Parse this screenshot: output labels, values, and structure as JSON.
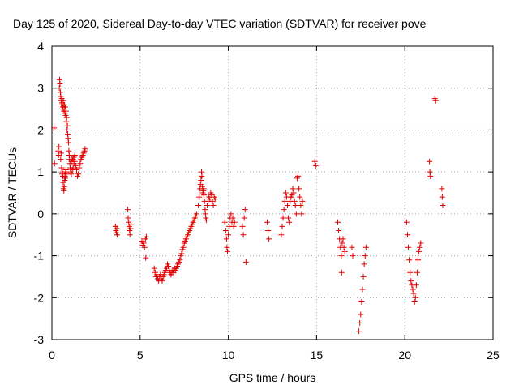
{
  "chart_data": {
    "type": "scatter",
    "title": "Day 125 of 2020, Sidereal Day-to-day VTEC variation (SDTVAR) for receiver pove",
    "xlabel": "GPS time / hours",
    "ylabel": "SDTVAR / TECUs",
    "xlim": [
      0,
      25
    ],
    "ylim": [
      -3,
      4
    ],
    "xticks": [
      0,
      5,
      10,
      15,
      20,
      25
    ],
    "yticks": [
      -3,
      -2,
      -1,
      0,
      1,
      2,
      3,
      4
    ],
    "xtick_labels": [
      "0",
      "5",
      "10",
      "15",
      "20",
      "25"
    ],
    "ytick_labels": [
      "-3",
      "-2",
      "-1",
      "0",
      "1",
      "2",
      "3",
      "4"
    ],
    "grid": true,
    "marker": "+",
    "series": [
      {
        "name": "SDTVAR",
        "color": "#e00000",
        "points": [
          [
            0.12,
            2.05
          ],
          [
            0.15,
            1.2
          ],
          [
            0.35,
            1.5
          ],
          [
            0.38,
            1.4
          ],
          [
            0.4,
            1.6
          ],
          [
            0.42,
            3.0
          ],
          [
            0.44,
            3.2
          ],
          [
            0.46,
            3.1
          ],
          [
            0.48,
            2.9
          ],
          [
            0.5,
            2.8
          ],
          [
            0.52,
            2.7
          ],
          [
            0.54,
            2.6
          ],
          [
            0.56,
            2.75
          ],
          [
            0.58,
            2.65
          ],
          [
            0.6,
            2.5
          ],
          [
            0.62,
            2.55
          ],
          [
            0.64,
            2.7
          ],
          [
            0.66,
            2.6
          ],
          [
            0.68,
            2.45
          ],
          [
            0.7,
            2.5
          ],
          [
            0.72,
            2.6
          ],
          [
            0.74,
            2.4
          ],
          [
            0.76,
            2.55
          ],
          [
            0.78,
            2.35
          ],
          [
            0.8,
            2.45
          ],
          [
            0.82,
            2.2
          ],
          [
            0.84,
            2.3
          ],
          [
            0.86,
            2.0
          ],
          [
            0.88,
            2.1
          ],
          [
            0.9,
            1.9
          ],
          [
            0.92,
            1.8
          ],
          [
            0.94,
            1.7
          ],
          [
            0.96,
            1.5
          ],
          [
            0.98,
            1.4
          ],
          [
            1.0,
            1.3
          ],
          [
            1.02,
            1.2
          ],
          [
            1.04,
            1.1
          ],
          [
            0.5,
            1.3
          ],
          [
            0.52,
            1.45
          ],
          [
            0.55,
            1.1
          ],
          [
            0.58,
            0.95
          ],
          [
            0.6,
            1.0
          ],
          [
            0.62,
            0.9
          ],
          [
            0.64,
            0.75
          ],
          [
            0.66,
            0.6
          ],
          [
            0.68,
            0.55
          ],
          [
            0.7,
            0.65
          ],
          [
            0.72,
            0.8
          ],
          [
            0.74,
            0.9
          ],
          [
            0.76,
            0.85
          ],
          [
            0.78,
            1.0
          ],
          [
            0.8,
            1.05
          ],
          [
            0.82,
            0.95
          ],
          [
            1.06,
            1.0
          ],
          [
            1.1,
            0.95
          ],
          [
            1.15,
            1.05
          ],
          [
            1.2,
            1.1
          ],
          [
            1.25,
            1.2
          ],
          [
            1.3,
            1.25
          ],
          [
            1.35,
            1.15
          ],
          [
            1.4,
            1.05
          ],
          [
            1.45,
            0.9
          ],
          [
            1.5,
            0.95
          ],
          [
            1.55,
            1.1
          ],
          [
            1.6,
            1.2
          ],
          [
            1.65,
            1.3
          ],
          [
            1.7,
            1.35
          ],
          [
            1.75,
            1.4
          ],
          [
            1.8,
            1.45
          ],
          [
            1.85,
            1.5
          ],
          [
            1.88,
            1.55
          ],
          [
            1.2,
            1.3
          ],
          [
            1.25,
            1.35
          ],
          [
            1.3,
            1.4
          ],
          [
            1.1,
            1.25
          ],
          [
            1.15,
            1.3
          ],
          [
            3.6,
            -0.3
          ],
          [
            3.62,
            -0.4
          ],
          [
            3.65,
            -0.45
          ],
          [
            3.68,
            -0.35
          ],
          [
            3.7,
            -0.5
          ],
          [
            4.3,
            0.1
          ],
          [
            4.32,
            -0.1
          ],
          [
            4.35,
            -0.2
          ],
          [
            4.38,
            -0.3
          ],
          [
            4.4,
            -0.4
          ],
          [
            4.42,
            -0.5
          ],
          [
            4.45,
            -0.35
          ],
          [
            4.48,
            -0.25
          ],
          [
            5.1,
            -0.65
          ],
          [
            5.15,
            -0.75
          ],
          [
            5.2,
            -0.7
          ],
          [
            5.25,
            -0.8
          ],
          [
            5.3,
            -0.6
          ],
          [
            5.35,
            -0.55
          ],
          [
            5.32,
            -1.05
          ],
          [
            5.8,
            -1.3
          ],
          [
            5.85,
            -1.4
          ],
          [
            5.9,
            -1.5
          ],
          [
            5.95,
            -1.45
          ],
          [
            6.0,
            -1.55
          ],
          [
            6.05,
            -1.6
          ],
          [
            6.1,
            -1.5
          ],
          [
            6.15,
            -1.45
          ],
          [
            6.2,
            -1.55
          ],
          [
            6.25,
            -1.6
          ],
          [
            6.3,
            -1.5
          ],
          [
            6.35,
            -1.45
          ],
          [
            6.4,
            -1.4
          ],
          [
            6.45,
            -1.35
          ],
          [
            6.5,
            -1.3
          ],
          [
            6.55,
            -1.2
          ],
          [
            6.6,
            -1.25
          ],
          [
            6.65,
            -1.35
          ],
          [
            6.7,
            -1.4
          ],
          [
            6.75,
            -1.45
          ],
          [
            6.8,
            -1.4
          ],
          [
            6.85,
            -1.35
          ],
          [
            6.9,
            -1.4
          ],
          [
            6.95,
            -1.3
          ],
          [
            7.0,
            -1.35
          ],
          [
            7.05,
            -1.3
          ],
          [
            7.1,
            -1.25
          ],
          [
            7.15,
            -1.2
          ],
          [
            7.2,
            -1.15
          ],
          [
            7.25,
            -1.1
          ],
          [
            7.3,
            -1.0
          ],
          [
            7.35,
            -0.95
          ],
          [
            7.4,
            -0.85
          ],
          [
            7.45,
            -0.8
          ],
          [
            7.5,
            -0.7
          ],
          [
            7.55,
            -0.65
          ],
          [
            7.6,
            -0.6
          ],
          [
            7.65,
            -0.55
          ],
          [
            7.7,
            -0.5
          ],
          [
            7.75,
            -0.45
          ],
          [
            7.8,
            -0.4
          ],
          [
            7.85,
            -0.35
          ],
          [
            7.9,
            -0.3
          ],
          [
            7.95,
            -0.25
          ],
          [
            8.0,
            -0.2
          ],
          [
            8.05,
            -0.15
          ],
          [
            8.1,
            -0.1
          ],
          [
            8.15,
            -0.05
          ],
          [
            8.2,
            0.0
          ],
          [
            8.3,
            0.2
          ],
          [
            8.35,
            0.4
          ],
          [
            8.4,
            0.6
          ],
          [
            8.42,
            0.7
          ],
          [
            8.45,
            0.8
          ],
          [
            8.48,
            1.0
          ],
          [
            8.5,
            0.9
          ],
          [
            8.52,
            0.65
          ],
          [
            8.55,
            0.5
          ],
          [
            8.58,
            0.55
          ],
          [
            8.6,
            0.6
          ],
          [
            8.62,
            0.45
          ],
          [
            8.65,
            0.3
          ],
          [
            8.68,
            0.1
          ],
          [
            8.7,
            0.0
          ],
          [
            8.72,
            -0.1
          ],
          [
            8.75,
            -0.15
          ],
          [
            8.8,
            0.2
          ],
          [
            8.85,
            0.3
          ],
          [
            8.9,
            0.4
          ],
          [
            8.95,
            0.35
          ],
          [
            9.0,
            0.5
          ],
          [
            9.05,
            0.45
          ],
          [
            9.1,
            0.3
          ],
          [
            9.15,
            0.2
          ],
          [
            9.2,
            0.4
          ],
          [
            9.25,
            0.35
          ],
          [
            9.8,
            -0.2
          ],
          [
            9.85,
            -0.4
          ],
          [
            9.9,
            -0.6
          ],
          [
            9.92,
            -0.8
          ],
          [
            9.95,
            -0.9
          ],
          [
            10.0,
            -0.5
          ],
          [
            10.05,
            -0.3
          ],
          [
            10.1,
            -0.1
          ],
          [
            10.15,
            0.0
          ],
          [
            10.2,
            -0.2
          ],
          [
            10.25,
            -0.1
          ],
          [
            10.3,
            -0.3
          ],
          [
            10.35,
            -0.2
          ],
          [
            10.8,
            -0.3
          ],
          [
            10.85,
            -0.5
          ],
          [
            10.9,
            -0.1
          ],
          [
            10.95,
            0.1
          ],
          [
            11.0,
            -1.15
          ],
          [
            12.2,
            -0.2
          ],
          [
            12.25,
            -0.4
          ],
          [
            12.3,
            -0.6
          ],
          [
            13.0,
            -0.5
          ],
          [
            13.05,
            -0.3
          ],
          [
            13.1,
            -0.1
          ],
          [
            13.15,
            0.1
          ],
          [
            13.2,
            0.3
          ],
          [
            13.25,
            0.5
          ],
          [
            13.3,
            0.4
          ],
          [
            13.35,
            0.2
          ],
          [
            13.4,
            -0.1
          ],
          [
            13.45,
            -0.2
          ],
          [
            13.5,
            0.3
          ],
          [
            13.55,
            0.4
          ],
          [
            13.6,
            0.45
          ],
          [
            13.65,
            0.6
          ],
          [
            13.7,
            0.5
          ],
          [
            13.75,
            0.3
          ],
          [
            13.8,
            0.2
          ],
          [
            13.85,
            0.0
          ],
          [
            13.9,
            0.85
          ],
          [
            13.95,
            0.9
          ],
          [
            14.0,
            0.6
          ],
          [
            14.05,
            0.4
          ],
          [
            14.1,
            0.2
          ],
          [
            14.15,
            0.0
          ],
          [
            14.2,
            0.3
          ],
          [
            14.9,
            1.25
          ],
          [
            14.95,
            1.15
          ],
          [
            16.2,
            -0.2
          ],
          [
            16.25,
            -0.4
          ],
          [
            16.3,
            -0.6
          ],
          [
            16.35,
            -0.8
          ],
          [
            16.4,
            -1.0
          ],
          [
            16.42,
            -1.4
          ],
          [
            16.45,
            -0.7
          ],
          [
            16.5,
            -0.6
          ],
          [
            16.55,
            -0.8
          ],
          [
            16.6,
            -0.9
          ],
          [
            17.0,
            -0.8
          ],
          [
            17.05,
            -1.0
          ],
          [
            17.4,
            -2.8
          ],
          [
            17.45,
            -2.6
          ],
          [
            17.5,
            -2.4
          ],
          [
            17.55,
            -2.1
          ],
          [
            17.6,
            -1.8
          ],
          [
            17.65,
            -1.5
          ],
          [
            17.7,
            -1.2
          ],
          [
            17.75,
            -1.0
          ],
          [
            17.8,
            -0.8
          ],
          [
            20.1,
            -0.2
          ],
          [
            20.15,
            -0.5
          ],
          [
            20.2,
            -0.8
          ],
          [
            20.25,
            -1.1
          ],
          [
            20.3,
            -1.4
          ],
          [
            20.35,
            -1.6
          ],
          [
            20.4,
            -1.7
          ],
          [
            20.45,
            -1.8
          ],
          [
            20.5,
            -1.9
          ],
          [
            20.55,
            -2.1
          ],
          [
            20.6,
            -2.0
          ],
          [
            20.65,
            -1.7
          ],
          [
            20.7,
            -1.4
          ],
          [
            20.75,
            -1.1
          ],
          [
            20.8,
            -0.9
          ],
          [
            20.85,
            -0.8
          ],
          [
            20.9,
            -0.7
          ],
          [
            21.4,
            1.25
          ],
          [
            21.42,
            1.0
          ],
          [
            21.45,
            0.9
          ],
          [
            21.7,
            2.75
          ],
          [
            21.75,
            2.7
          ],
          [
            22.1,
            0.6
          ],
          [
            22.12,
            0.4
          ],
          [
            22.15,
            0.2
          ]
        ]
      }
    ]
  }
}
